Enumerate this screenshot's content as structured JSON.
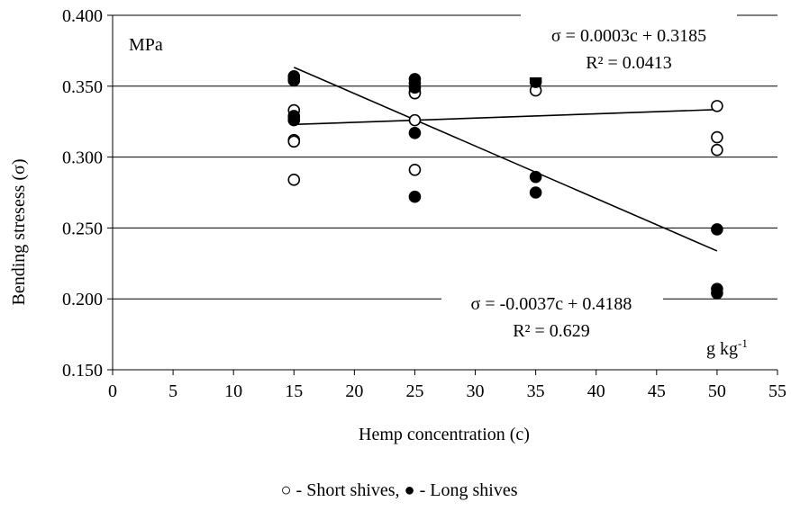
{
  "chart_data": {
    "type": "scatter",
    "xlabel": "Hemp concentration (c)",
    "ylabel": "Bending stresess (σ)",
    "xlim": [
      0,
      55
    ],
    "ylim": [
      0.15,
      0.4
    ],
    "xticks": [
      0,
      5,
      10,
      15,
      20,
      25,
      30,
      35,
      40,
      45,
      50,
      55
    ],
    "yticks": [
      0.15,
      0.2,
      0.25,
      0.3,
      0.35,
      0.4
    ],
    "ytick_labels": [
      "0.150",
      "0.200",
      "0.250",
      "0.300",
      "0.350",
      "0.400"
    ],
    "grid": "horizontal",
    "unit_y": "MPa",
    "unit_x_base": "g kg",
    "unit_x_exp": "-1",
    "series": [
      {
        "name": "Short shives",
        "marker": "open-circle",
        "points": [
          {
            "x": 15,
            "y": 0.354
          },
          {
            "x": 15,
            "y": 0.333
          },
          {
            "x": 15,
            "y": 0.329
          },
          {
            "x": 15,
            "y": 0.312
          },
          {
            "x": 15,
            "y": 0.311
          },
          {
            "x": 15,
            "y": 0.284
          },
          {
            "x": 25,
            "y": 0.346
          },
          {
            "x": 25,
            "y": 0.345
          },
          {
            "x": 25,
            "y": 0.326
          },
          {
            "x": 25,
            "y": 0.291
          },
          {
            "x": 35,
            "y": 0.347
          },
          {
            "x": 50,
            "y": 0.336
          },
          {
            "x": 50,
            "y": 0.314
          },
          {
            "x": 50,
            "y": 0.305
          }
        ]
      },
      {
        "name": "Long shives",
        "marker": "filled-circle",
        "points": [
          {
            "x": 15,
            "y": 0.357
          },
          {
            "x": 15,
            "y": 0.355
          },
          {
            "x": 15,
            "y": 0.328
          },
          {
            "x": 15,
            "y": 0.326
          },
          {
            "x": 25,
            "y": 0.355
          },
          {
            "x": 25,
            "y": 0.352
          },
          {
            "x": 25,
            "y": 0.349
          },
          {
            "x": 25,
            "y": 0.317
          },
          {
            "x": 25,
            "y": 0.272
          },
          {
            "x": 35,
            "y": 0.355
          },
          {
            "x": 35,
            "y": 0.353
          },
          {
            "x": 35,
            "y": 0.286
          },
          {
            "x": 35,
            "y": 0.275
          },
          {
            "x": 50,
            "y": 0.249
          },
          {
            "x": 50,
            "y": 0.207
          },
          {
            "x": 50,
            "y": 0.204
          }
        ]
      }
    ],
    "trendlines": [
      {
        "series": "Short shives",
        "slope": 0.0003,
        "intercept": 0.3185,
        "x_range": [
          15,
          50
        ]
      },
      {
        "series": "Long shives",
        "slope": -0.0037,
        "intercept": 0.4188,
        "x_range": [
          15,
          50
        ]
      }
    ],
    "annotations": {
      "short_equation": "σ = 0.0003c + 0.3185",
      "short_r2": "R² = 0.0413",
      "long_equation": "σ = -0.0037c + 0.4188",
      "long_r2": "R² = 0.629"
    },
    "legend": {
      "short_symbol": "○",
      "short_text": " - Short shives, ",
      "long_symbol": "●",
      "long_text": " - Long shives"
    }
  }
}
